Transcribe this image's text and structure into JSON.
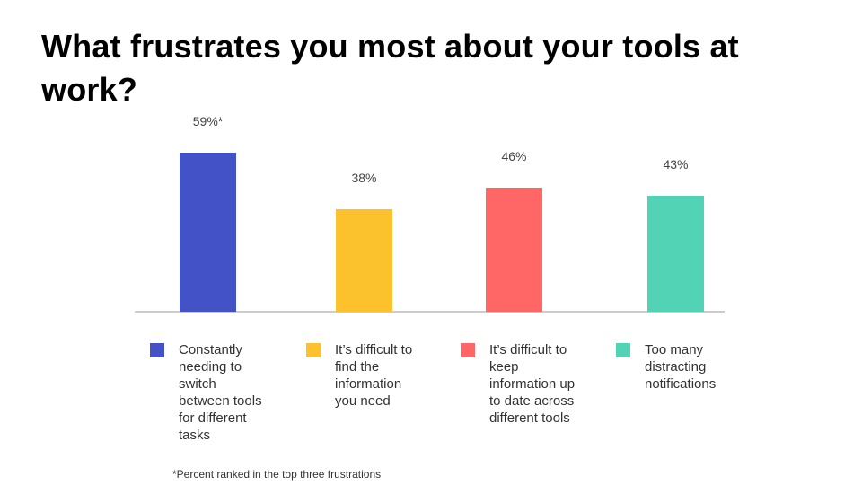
{
  "title": "What frustrates you most about your tools at work?",
  "footnote": "*Percent ranked in the top three frustrations",
  "chart_data": {
    "type": "bar",
    "title": "What frustrates you most about your tools at work?",
    "categories": [
      "Constantly needing to switch between tools for different tasks",
      "It’s difficult to find the information you need",
      "It’s difficult to keep information up to date across different tools",
      "Too many distracting notifications"
    ],
    "values": [
      59,
      38,
      46,
      43
    ],
    "value_labels": [
      "59%*",
      "38%",
      "46%",
      "43%"
    ],
    "colors": [
      "#4353c7",
      "#fbc22d",
      "#ff6666",
      "#52d3b5"
    ],
    "unit": "%",
    "ylim": [
      0,
      60
    ],
    "grid": false,
    "legend": "bottom"
  },
  "legend_lines": [
    [
      "Constantly",
      "needing to",
      "switch",
      "between tools",
      "for different",
      "tasks"
    ],
    [
      "It’s difficult to",
      "find the",
      "information",
      "you need"
    ],
    [
      "It’s difficult to",
      "keep",
      "information up",
      "to date across",
      "different tools"
    ],
    [
      "Too many",
      "distracting",
      "notifications"
    ]
  ]
}
